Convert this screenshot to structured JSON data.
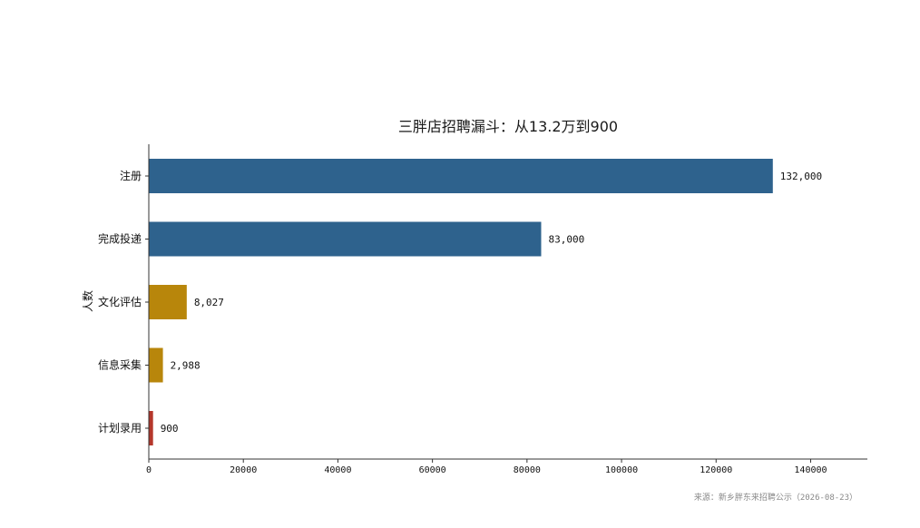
{
  "chart_data": {
    "type": "bar",
    "orientation": "horizontal",
    "title": "三胖店招聘漏斗：从13.2万到900",
    "ylabel": "人数",
    "xlabel": "",
    "categories": [
      "注册",
      "完成投递",
      "文化评估",
      "信息采集",
      "计划录用"
    ],
    "values": [
      132000,
      83000,
      8027,
      2988,
      900
    ],
    "value_labels": [
      "132,000",
      "83,000",
      "8,027",
      "2,988",
      "900"
    ],
    "bar_colors": [
      "#2e628d",
      "#2e628d",
      "#b8860b",
      "#b8860b",
      "#b5372b"
    ],
    "xlim": [
      0,
      152000
    ],
    "xticks": [
      0,
      20000,
      40000,
      60000,
      80000,
      100000,
      120000,
      140000
    ],
    "xtick_labels": [
      "0",
      "20000",
      "40000",
      "60000",
      "80000",
      "100000",
      "120000",
      "140000"
    ],
    "grid": false
  },
  "source": "来源：新乡胖东来招聘公示（2026-08-23）"
}
